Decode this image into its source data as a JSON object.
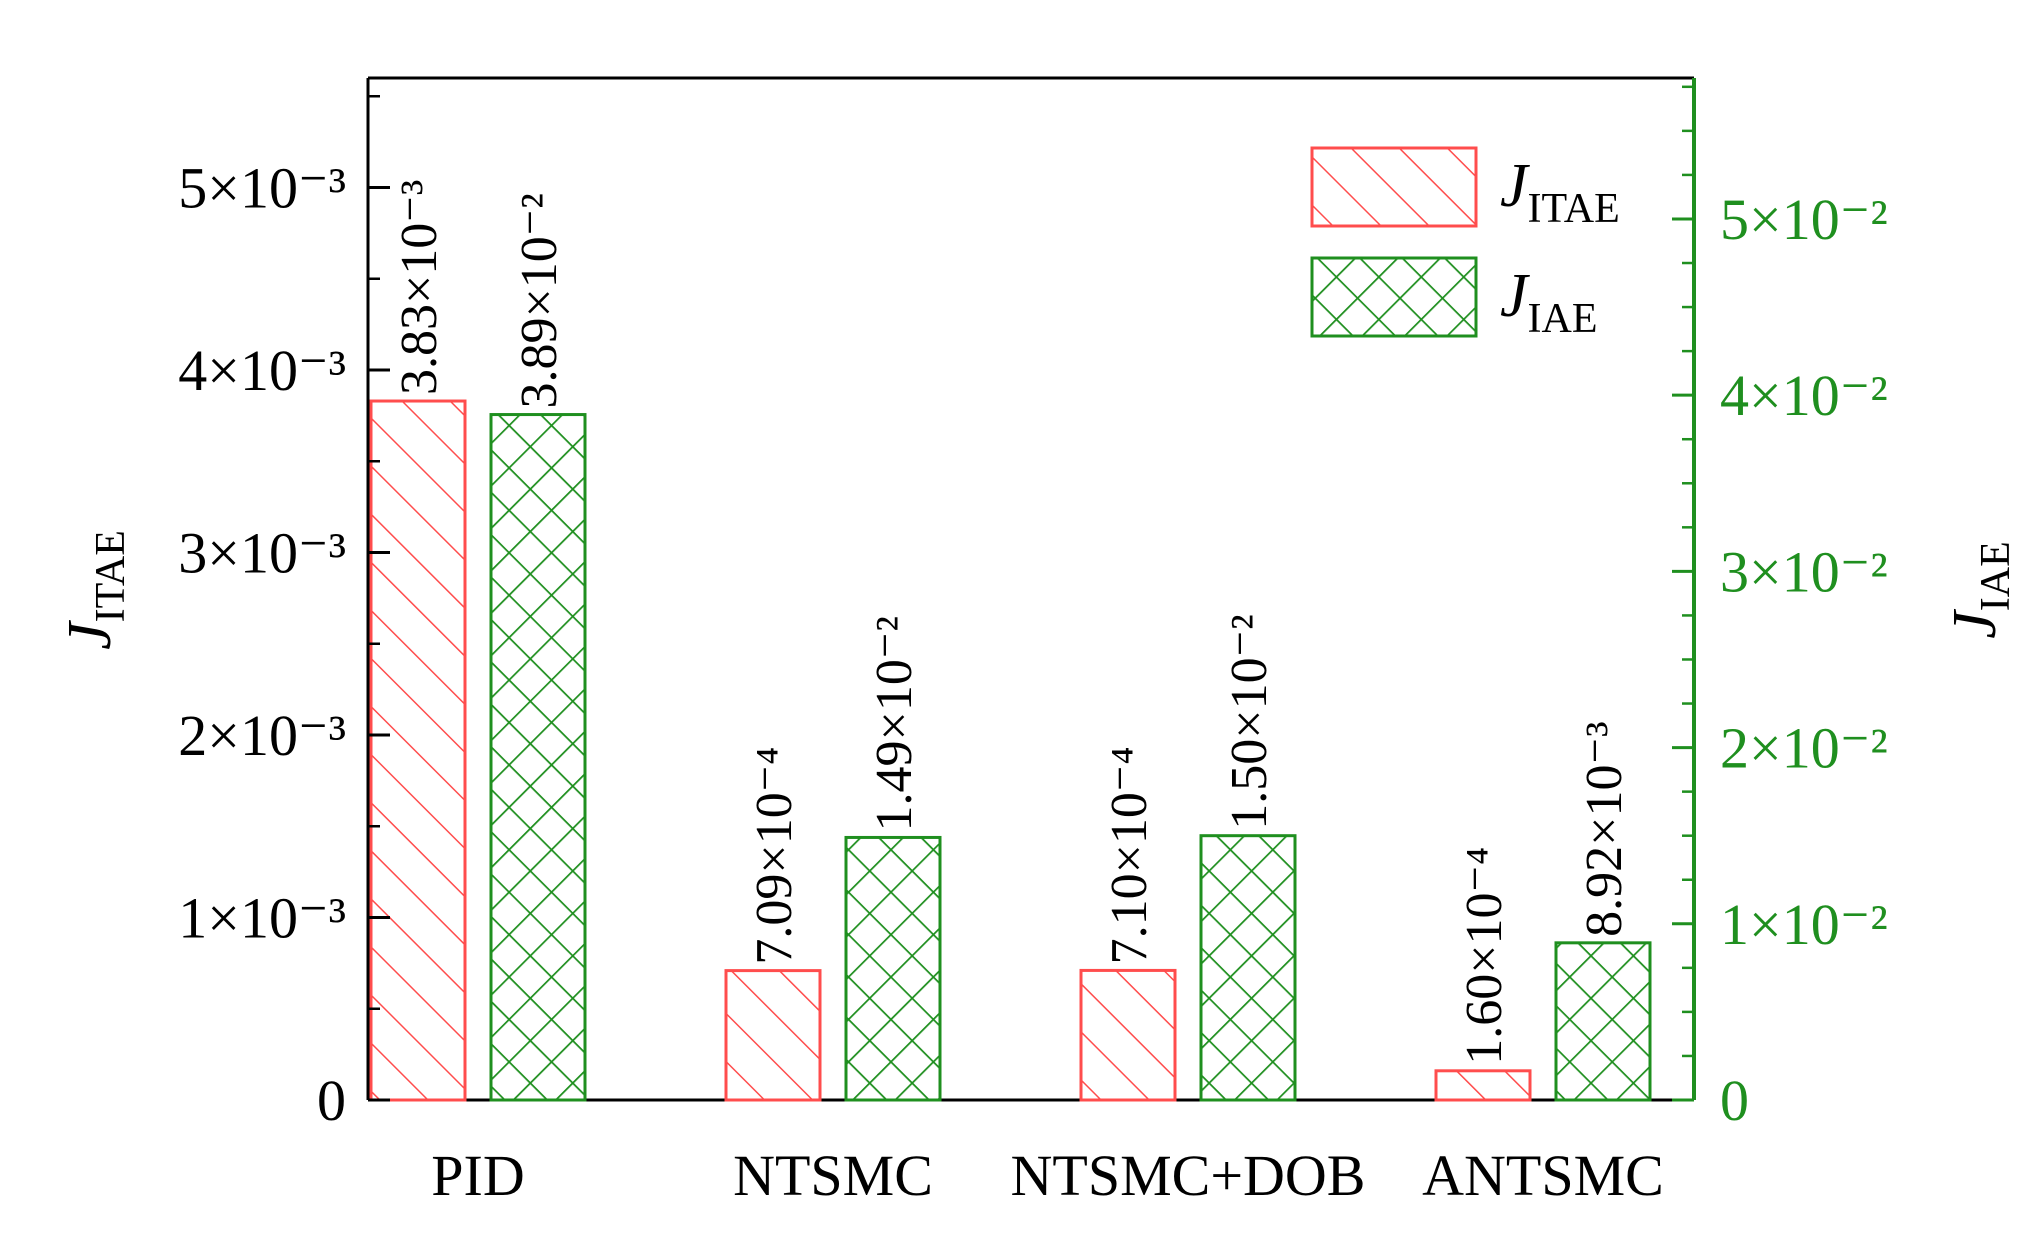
{
  "chart_data": {
    "type": "bar",
    "categories": [
      "PID",
      "NTSMC",
      "NTSMC+DOB",
      "ANTSMC"
    ],
    "series": [
      {
        "name": "J_ITAE",
        "axis": "left",
        "values": [
          0.00383,
          0.000709,
          0.00071,
          0.00016
        ],
        "labels": [
          "3.83×10⁻³",
          "7.09×10⁻⁴",
          "7.10×10⁻⁴",
          "1.60×10⁻⁴"
        ],
        "color": "#ff4d4d",
        "pattern": "hatch"
      },
      {
        "name": "J_IAE",
        "axis": "right",
        "values": [
          0.0389,
          0.0149,
          0.015,
          0.00892
        ],
        "labels": [
          "3.89×10⁻²",
          "1.49×10⁻²",
          "1.50×10⁻²",
          "8.92×10⁻³"
        ],
        "color": "#1f8f1f",
        "pattern": "crosshatch"
      }
    ],
    "y_left": {
      "label_main": "J",
      "label_sub": "ITAE",
      "ylim": [
        0,
        0.0056
      ],
      "ticks": [
        0,
        0.001,
        0.002,
        0.003,
        0.004,
        0.005
      ],
      "tick_labels": [
        "0",
        "1×10⁻³",
        "2×10⁻³",
        "3×10⁻³",
        "4×10⁻³",
        "5×10⁻³"
      ],
      "color": "#000000"
    },
    "y_right": {
      "label_main": "J",
      "label_sub": "IAE",
      "ylim": [
        0,
        0.058
      ],
      "ticks": [
        0,
        0.01,
        0.02,
        0.03,
        0.04,
        0.05
      ],
      "tick_labels": [
        "0",
        "1×10⁻²",
        "2×10⁻²",
        "3×10⁻²",
        "4×10⁻²",
        "5×10⁻²"
      ],
      "color": "#1f8f1f"
    },
    "legend": {
      "placement": "top-right",
      "entries": [
        {
          "main": "J",
          "sub": "ITAE"
        },
        {
          "main": "J",
          "sub": "IAE"
        }
      ]
    },
    "grid": false
  }
}
